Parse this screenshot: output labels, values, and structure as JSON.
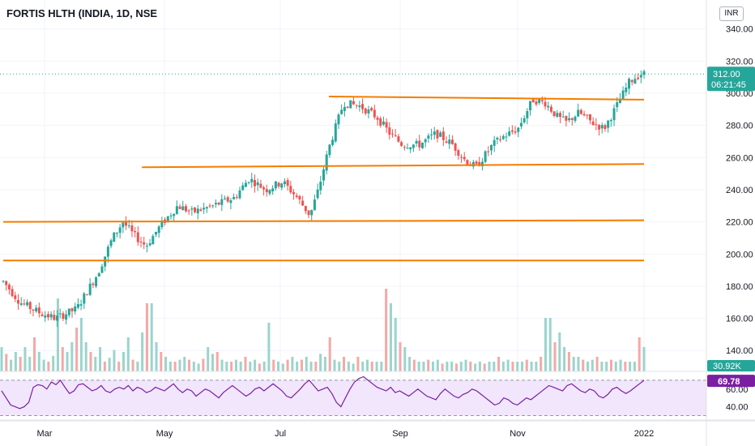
{
  "header": {
    "title": "FORTIS HLTH (INDIA, 1D, NSE",
    "currency_button": "INR"
  },
  "price_badge": {
    "price": "312.00",
    "countdown": "06:21:45",
    "color": "#26a69a"
  },
  "volume_badge": {
    "value": "30.92K",
    "color": "#26a69a"
  },
  "rsi_badge": {
    "value": "69.78",
    "color": "#7b1fa2"
  },
  "colors": {
    "up": "#26a69a",
    "down": "#ef5350",
    "volume_up": "#9bd4cd",
    "volume_down": "#f5a8a6",
    "trendline": "#f57c00",
    "rsi_line": "#7b1fa2",
    "rsi_band": "#f1e6fb"
  },
  "chart_data": [
    {
      "type": "candlestick",
      "title": "FORTIS HLTH (INDIA, 1D, NSE",
      "x_ticks": [
        "Mar",
        "May",
        "Jul",
        "Sep",
        "Nov",
        "2022"
      ],
      "y_ticks": [
        140,
        160,
        180,
        200,
        220,
        240,
        260,
        280,
        300,
        320,
        340
      ],
      "y_tick_labels": [
        "140.00",
        "160.00",
        "180.00",
        "200.00",
        "220.00",
        "240.00",
        "260.00",
        "280.00",
        "300.00",
        "320.00",
        "340.00"
      ],
      "ylim": [
        127,
        358
      ],
      "last_price": 312.0,
      "close_series_approx": [
        [
          0,
          183
        ],
        [
          8,
          170
        ],
        [
          18,
          163
        ],
        [
          25,
          160
        ],
        [
          35,
          166
        ],
        [
          45,
          188
        ],
        [
          52,
          210
        ],
        [
          57,
          220
        ],
        [
          62,
          212
        ],
        [
          68,
          205
        ],
        [
          75,
          218
        ],
        [
          83,
          230
        ],
        [
          90,
          226
        ],
        [
          100,
          230
        ],
        [
          110,
          235
        ],
        [
          117,
          247
        ],
        [
          125,
          240
        ],
        [
          133,
          245
        ],
        [
          140,
          235
        ],
        [
          146,
          224
        ],
        [
          150,
          240
        ],
        [
          155,
          266
        ],
        [
          162,
          294
        ],
        [
          170,
          292
        ],
        [
          178,
          285
        ],
        [
          184,
          275
        ],
        [
          190,
          268
        ],
        [
          198,
          268
        ],
        [
          206,
          275
        ],
        [
          214,
          268
        ],
        [
          220,
          258
        ],
        [
          225,
          254
        ],
        [
          233,
          268
        ],
        [
          238,
          273
        ],
        [
          245,
          278
        ],
        [
          252,
          296
        ],
        [
          258,
          294
        ],
        [
          264,
          285
        ],
        [
          268,
          282
        ],
        [
          274,
          288
        ],
        [
          280,
          282
        ],
        [
          286,
          278
        ],
        [
          292,
          292
        ],
        [
          298,
          307
        ],
        [
          303,
          312
        ]
      ],
      "trendlines": [
        {
          "from": [
            155,
            298
          ],
          "to": [
            305,
            296
          ]
        },
        {
          "from": [
            66,
            254
          ],
          "to": [
            305,
            256
          ]
        },
        {
          "from": [
            0,
            220
          ],
          "to": [
            305,
            221
          ]
        },
        {
          "from": [
            0,
            196
          ],
          "to": [
            305,
            196
          ]
        }
      ]
    },
    {
      "type": "bar",
      "name": "Volume",
      "last_value": "30.92K",
      "relative_heights_approx": [
        0.25,
        0.18,
        0.12,
        0.2,
        0.15,
        0.25,
        0.15,
        0.35,
        0.2,
        0.12,
        0.1,
        0.16,
        0.75,
        0.25,
        0.2,
        0.3,
        0.45,
        0.55,
        0.3,
        0.2,
        0.15,
        0.25,
        0.1,
        0.14,
        0.22,
        0.1,
        0.2,
        0.35,
        0.12,
        0.1,
        0.4,
        0.7,
        0.7,
        0.3,
        0.2,
        0.15,
        0.1,
        0.1,
        0.12,
        0.15,
        0.12,
        0.1,
        0.08,
        0.13,
        0.25,
        0.18,
        0.2,
        0.12,
        0.1,
        0.1,
        0.12,
        0.1,
        0.15,
        0.1,
        0.12,
        0.08,
        0.1,
        0.5,
        0.12,
        0.1,
        0.08,
        0.12,
        0.15,
        0.1,
        0.12,
        0.15,
        0.1,
        0.1,
        0.18,
        0.15,
        0.35,
        0.12,
        0.1,
        0.15,
        0.1,
        0.08,
        0.15,
        0.1,
        0.12,
        0.1,
        0.1,
        0.1,
        0.85,
        0.7,
        0.55,
        0.3,
        0.25,
        0.15,
        0.12,
        0.1,
        0.1,
        0.12,
        0.1,
        0.12,
        0.08,
        0.1,
        0.1,
        0.08,
        0.1,
        0.12,
        0.1,
        0.08,
        0.1,
        0.08,
        0.1,
        0.1,
        0.15,
        0.1,
        0.12,
        0.1,
        0.1,
        0.1,
        0.12,
        0.1,
        0.1,
        0.15,
        0.55,
        0.55,
        0.3,
        0.4,
        0.25,
        0.2,
        0.15,
        0.15,
        0.12,
        0.1,
        0.12,
        0.15,
        0.1,
        0.1,
        0.12,
        0.1,
        0.12,
        0.1,
        0.1,
        0.1,
        0.35,
        0.25
      ]
    },
    {
      "type": "line",
      "name": "RSI",
      "y_ticks": [
        40,
        60
      ],
      "y_tick_labels": [
        "40.00",
        "60.00"
      ],
      "ylim": [
        25,
        80
      ],
      "band": [
        30,
        70
      ],
      "last_value": 69.78,
      "values_approx": [
        58,
        50,
        42,
        40,
        38,
        40,
        45,
        62,
        65,
        64,
        60,
        68,
        65,
        70,
        62,
        55,
        58,
        65,
        66,
        62,
        58,
        60,
        64,
        58,
        56,
        60,
        62,
        60,
        64,
        58,
        62,
        60,
        56,
        58,
        62,
        60,
        58,
        62,
        66,
        60,
        56,
        60,
        58,
        52,
        56,
        60,
        58,
        54,
        50,
        56,
        60,
        64,
        60,
        56,
        52,
        55,
        60,
        62,
        58,
        62,
        66,
        62,
        58,
        52,
        50,
        55,
        60,
        66,
        70,
        64,
        58,
        60,
        62,
        55,
        45,
        40,
        50,
        60,
        68,
        72,
        74,
        70,
        66,
        62,
        60,
        58,
        62,
        56,
        58,
        55,
        52,
        56,
        60,
        56,
        52,
        50,
        48,
        55,
        60,
        56,
        52,
        50,
        54,
        56,
        60,
        58,
        54,
        50,
        46,
        42,
        44,
        50,
        48,
        44,
        42,
        46,
        50,
        48,
        52,
        56,
        60,
        64,
        62,
        60,
        58,
        64,
        66,
        62,
        58,
        56,
        60,
        58,
        52,
        50,
        54,
        60,
        62,
        58,
        55,
        58,
        62,
        66,
        69.78
      ]
    }
  ]
}
